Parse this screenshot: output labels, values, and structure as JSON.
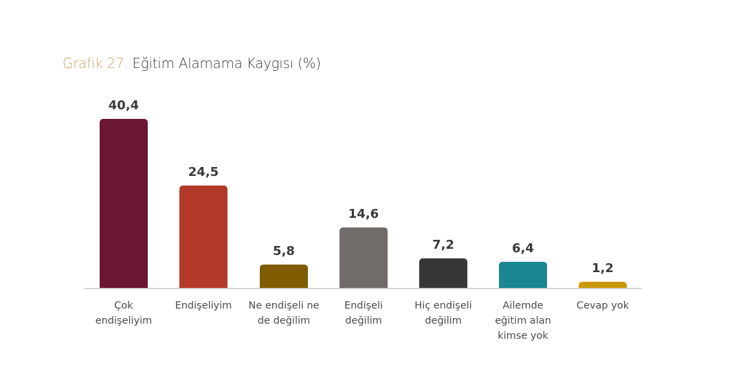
{
  "title": {
    "prefix": "Grafik 27.",
    "main": "Eğitim Alamama Kaygısı (%)"
  },
  "chart_data": {
    "type": "bar",
    "title": "Grafik 27. Eğitim Alamama Kaygısı (%)",
    "xlabel": "",
    "ylabel": "",
    "categories": [
      "Çok endişeliyim",
      "Endişeliyim",
      "Ne endişeli ne de değilim",
      "Endişeli değilim",
      "Hiç endişeli değilim",
      "Ailemde eğitim alan kimse yok",
      "Cevap yok"
    ],
    "values": [
      40.4,
      24.5,
      5.8,
      14.6,
      7.2,
      6.4,
      1.2
    ],
    "value_labels": [
      "40,4",
      "24,5",
      "5,8",
      "14,6",
      "7,2",
      "6,4",
      "1,2"
    ],
    "colors": [
      "#6b1732",
      "#b33a2a",
      "#7f5c00",
      "#716b6a",
      "#393736",
      "#1a8791",
      "#c9980a"
    ],
    "ylim": [
      0,
      40.4
    ],
    "grid": false,
    "legend": null
  },
  "bars": [
    {
      "label_lines": [
        "Çok",
        "endişeliyim"
      ],
      "value": "40,4"
    },
    {
      "label_lines": [
        "Endişeliyim"
      ],
      "value": "24,5"
    },
    {
      "label_lines": [
        "Ne endişeli ne",
        "de değilim"
      ],
      "value": "5,8"
    },
    {
      "label_lines": [
        "Endişeli",
        "değilim"
      ],
      "value": "14,6"
    },
    {
      "label_lines": [
        "Hiç endişeli",
        "değilim"
      ],
      "value": "7,2"
    },
    {
      "label_lines": [
        "Ailemde",
        "eğitim alan",
        "kimse yok"
      ],
      "value": "6,4"
    },
    {
      "label_lines": [
        "Cevap yok"
      ],
      "value": "1,2"
    }
  ]
}
